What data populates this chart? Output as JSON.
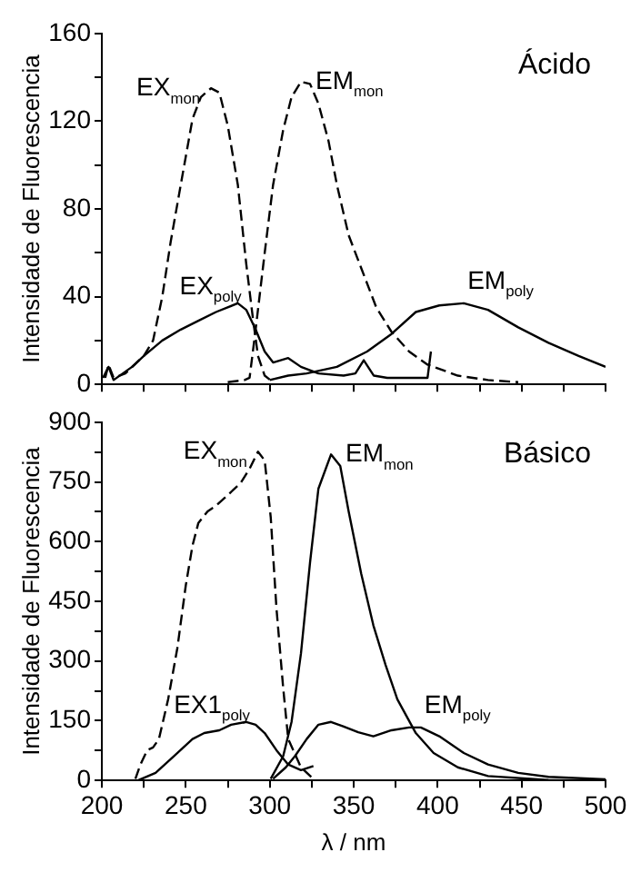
{
  "chart_data": [
    {
      "type": "line",
      "ylabel": "Intensidade de Fluorescencia",
      "annotations": [
        "Ácido"
      ],
      "xlim": [
        200,
        500
      ],
      "xticks": [
        200,
        {
          "value": 225,
          "label": null
        },
        250,
        {
          "value": 275,
          "label": null
        },
        300,
        {
          "value": 325,
          "label": null
        },
        350,
        {
          "value": 375,
          "label": null
        },
        400,
        {
          "value": 425,
          "label": null
        },
        450,
        {
          "value": 475,
          "label": null
        },
        500
      ],
      "ylim": [
        0,
        160
      ],
      "yticks": [
        0,
        {
          "value": 20,
          "label": null
        },
        40,
        {
          "value": 60,
          "label": null
        },
        80,
        {
          "value": 100,
          "label": null
        },
        120,
        {
          "value": 140,
          "label": null
        },
        160
      ],
      "tick_labels": "y",
      "grid": false,
      "series": [
        {
          "name": "EX$_{mon}$",
          "color": "#000000",
          "line_style": "dashed",
          "x": [
            202,
            204,
            207,
            214,
            225,
            230.5,
            236,
            241,
            247,
            254,
            259,
            265,
            270,
            275,
            281,
            286,
            290,
            293,
            297,
            302
          ],
          "values": [
            3,
            9,
            3,
            5,
            13,
            20,
            40,
            65,
            91,
            121,
            131,
            135,
            133,
            118,
            91,
            55,
            30,
            13,
            4,
            1
          ]
        },
        {
          "name": "EM$_{mon}$",
          "color": "#000000",
          "line_style": "dashed",
          "x": [
            275,
            285,
            288,
            291.6,
            297,
            302,
            308,
            313,
            318.6,
            324,
            329,
            335,
            340,
            347,
            354.5,
            363.5,
            372.5,
            383,
            394,
            412,
            430,
            448
          ],
          "values": [
            1,
            2,
            3,
            25,
            60,
            91,
            116,
            131,
            138,
            137,
            128,
            111,
            91,
            68,
            53,
            35,
            24,
            15,
            9,
            4,
            2,
            1
          ]
        },
        {
          "name": "EX$_{poly}$",
          "color": "#000000",
          "line_style": "solid",
          "x": [
            200.7,
            204,
            207,
            218,
            225,
            236,
            247,
            257.5,
            268,
            281,
            286,
            291.6,
            297,
            302,
            311,
            318.6,
            329,
            344,
            351,
            356,
            362,
            370,
            380,
            394,
            396
          ],
          "values": [
            3,
            8,
            2,
            8,
            13,
            20,
            25,
            29,
            33,
            37,
            34,
            25,
            15,
            10,
            12,
            8,
            5,
            4,
            5,
            11,
            4,
            3,
            3,
            3,
            15
          ]
        },
        {
          "name": "EM$_{poly}$",
          "color": "#000000",
          "line_style": "solid",
          "x": [
            300,
            311,
            322,
            340,
            358,
            372.5,
            387,
            401,
            415.6,
            430,
            448,
            466,
            484,
            500
          ],
          "values": [
            2,
            4,
            5,
            8,
            15,
            23,
            33,
            36,
            37,
            34,
            26,
            19,
            13,
            8
          ]
        }
      ]
    },
    {
      "type": "line",
      "xlabel": "λ / nm",
      "ylabel": "Intensidade de Fluorescencia",
      "annotations": [
        "Básico"
      ],
      "xlim": [
        200,
        500
      ],
      "xticks": [
        200,
        {
          "value": 225,
          "label": null
        },
        250,
        {
          "value": 275,
          "label": null
        },
        300,
        {
          "value": 325,
          "label": null
        },
        350,
        {
          "value": 375,
          "label": null
        },
        400,
        {
          "value": 425,
          "label": null
        },
        450,
        {
          "value": 475,
          "label": null
        },
        500
      ],
      "ylim": [
        0,
        900
      ],
      "yticks": [
        0,
        {
          "value": 75,
          "label": null
        },
        150,
        {
          "value": 225,
          "label": null
        },
        300,
        {
          "value": 375,
          "label": null
        },
        450,
        {
          "value": 525,
          "label": null
        },
        600,
        {
          "value": 675,
          "label": null
        },
        750,
        {
          "value": 825,
          "label": null
        },
        900
      ],
      "grid": false,
      "series": [
        {
          "name": "EX$_{mon}$",
          "color": "#000000",
          "line_style": "dashed",
          "x": [
            220,
            223,
            227,
            230.5,
            234,
            239.5,
            245,
            250,
            254,
            257.5,
            263,
            268,
            275.5,
            282.6,
            288,
            293,
            297,
            300.6,
            304,
            308,
            311,
            318.6,
            326
          ],
          "values": [
            4,
            40,
            76,
            83,
            104,
            204,
            333,
            490,
            590,
            647,
            676,
            690,
            719,
            747,
            783,
            826,
            804,
            661,
            433,
            233,
            104,
            33,
            4
          ]
        },
        {
          "name": "EM$_{mon}$",
          "color": "#000000",
          "line_style": "solid",
          "x": [
            300.6,
            308,
            313,
            318.6,
            324,
            329,
            336.5,
            342,
            347,
            354.5,
            361.7,
            369,
            376,
            387,
            397.6,
            412,
            430,
            466,
            500
          ],
          "values": [
            4,
            61,
            147,
            319,
            547,
            733,
            819,
            790,
            676,
            519,
            390,
            290,
            204,
            119,
            69,
            33,
            11,
            1,
            0
          ]
        },
        {
          "name": "EX1$_{poly}$",
          "color": "#000000",
          "line_style": "solid",
          "x": [
            221.5,
            232,
            243,
            254,
            261,
            270,
            277,
            286,
            291.6,
            297,
            304,
            311,
            318.6,
            326
          ],
          "values": [
            0,
            19,
            61,
            104,
            119,
            126,
            140,
            147,
            140,
            119,
            76,
            40,
            26,
            36
          ]
        },
        {
          "name": "EM$_{poly}$",
          "color": "#000000",
          "line_style": "solid",
          "x": [
            302,
            309.6,
            315,
            322,
            329,
            336.5,
            343.7,
            352.7,
            361.7,
            372.5,
            383,
            390,
            401,
            415.6,
            430,
            448,
            466,
            500
          ],
          "values": [
            4,
            33,
            61,
            104,
            140,
            147,
            136,
            121,
            111,
            126,
            133,
            133,
            111,
            69,
            40,
            19,
            9,
            3
          ]
        }
      ]
    }
  ]
}
